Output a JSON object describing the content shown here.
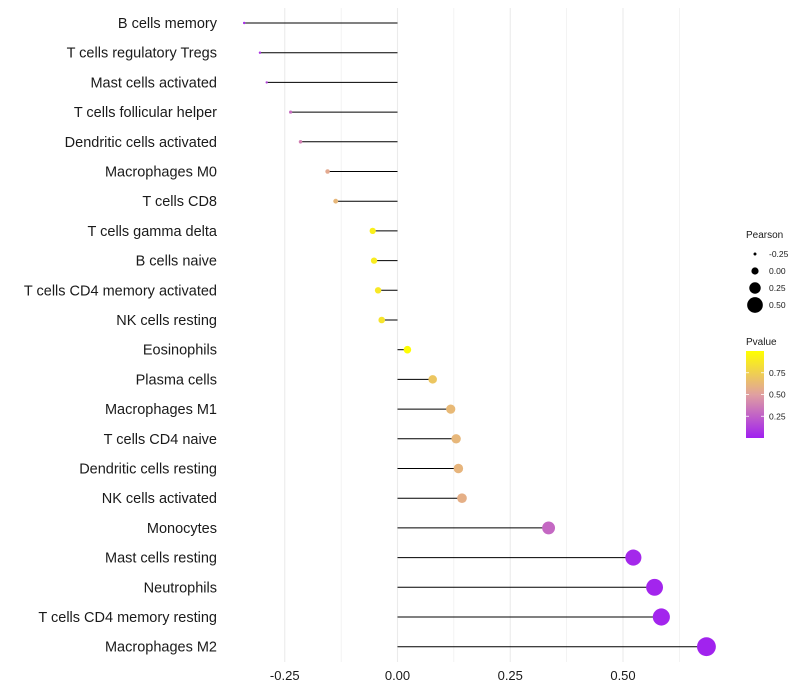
{
  "chart_data": {
    "type": "lollipop",
    "title": "",
    "xlabel": "",
    "ylabel": "",
    "xlim": [
      -0.375,
      0.73
    ],
    "x_ticks": [
      -0.25,
      0.0,
      0.25,
      0.5
    ],
    "x_tick_labels": [
      "-0.25",
      "0.00",
      "0.25",
      "0.50"
    ],
    "grid": true,
    "categories": [
      "B cells memory",
      "T cells regulatory  Tregs",
      "Mast cells activated",
      "T cells follicular helper",
      "Dendritic cells activated",
      "Macrophages M0",
      "T cells CD8",
      "T cells gamma delta",
      "B cells naive",
      "T cells CD4 memory activated",
      "NK cells resting",
      "Eosinophils",
      "Plasma cells",
      "Macrophages M1",
      "T cells CD4 naive",
      "Dendritic cells resting",
      "NK cells activated",
      "Monocytes",
      "Mast cells resting",
      "Neutrophils",
      "T cells CD4 memory resting",
      "Macrophages M2"
    ],
    "pearson": [
      -0.34,
      -0.305,
      -0.29,
      -0.237,
      -0.215,
      -0.155,
      -0.137,
      -0.055,
      -0.052,
      -0.043,
      -0.035,
      0.022,
      0.078,
      0.118,
      0.13,
      0.135,
      0.143,
      0.335,
      0.523,
      0.57,
      0.585,
      0.685
    ],
    "pvalue": [
      0.05,
      0.08,
      0.15,
      0.3,
      0.38,
      0.55,
      0.62,
      0.92,
      0.9,
      0.88,
      0.86,
      0.99,
      0.7,
      0.63,
      0.62,
      0.61,
      0.58,
      0.28,
      0.03,
      0.02,
      0.02,
      0.01
    ],
    "size_legend": {
      "title": "Pearson",
      "labels": [
        "-0.25",
        "0.00",
        "0.25",
        "0.50"
      ],
      "values": [
        -0.25,
        0.0,
        0.25,
        0.5
      ]
    },
    "color_legend": {
      "title": "Pvalue",
      "labels": [
        "0.75",
        "0.50",
        "0.25"
      ],
      "values": [
        0.75,
        0.5,
        0.25
      ],
      "range": [
        0.0,
        1.0
      ],
      "low_color": "#a020f0",
      "mid_color": "#e0a0a0",
      "high_color": "#ffff00"
    },
    "line_color": "#000000",
    "grid_color": "#ebebeb"
  }
}
